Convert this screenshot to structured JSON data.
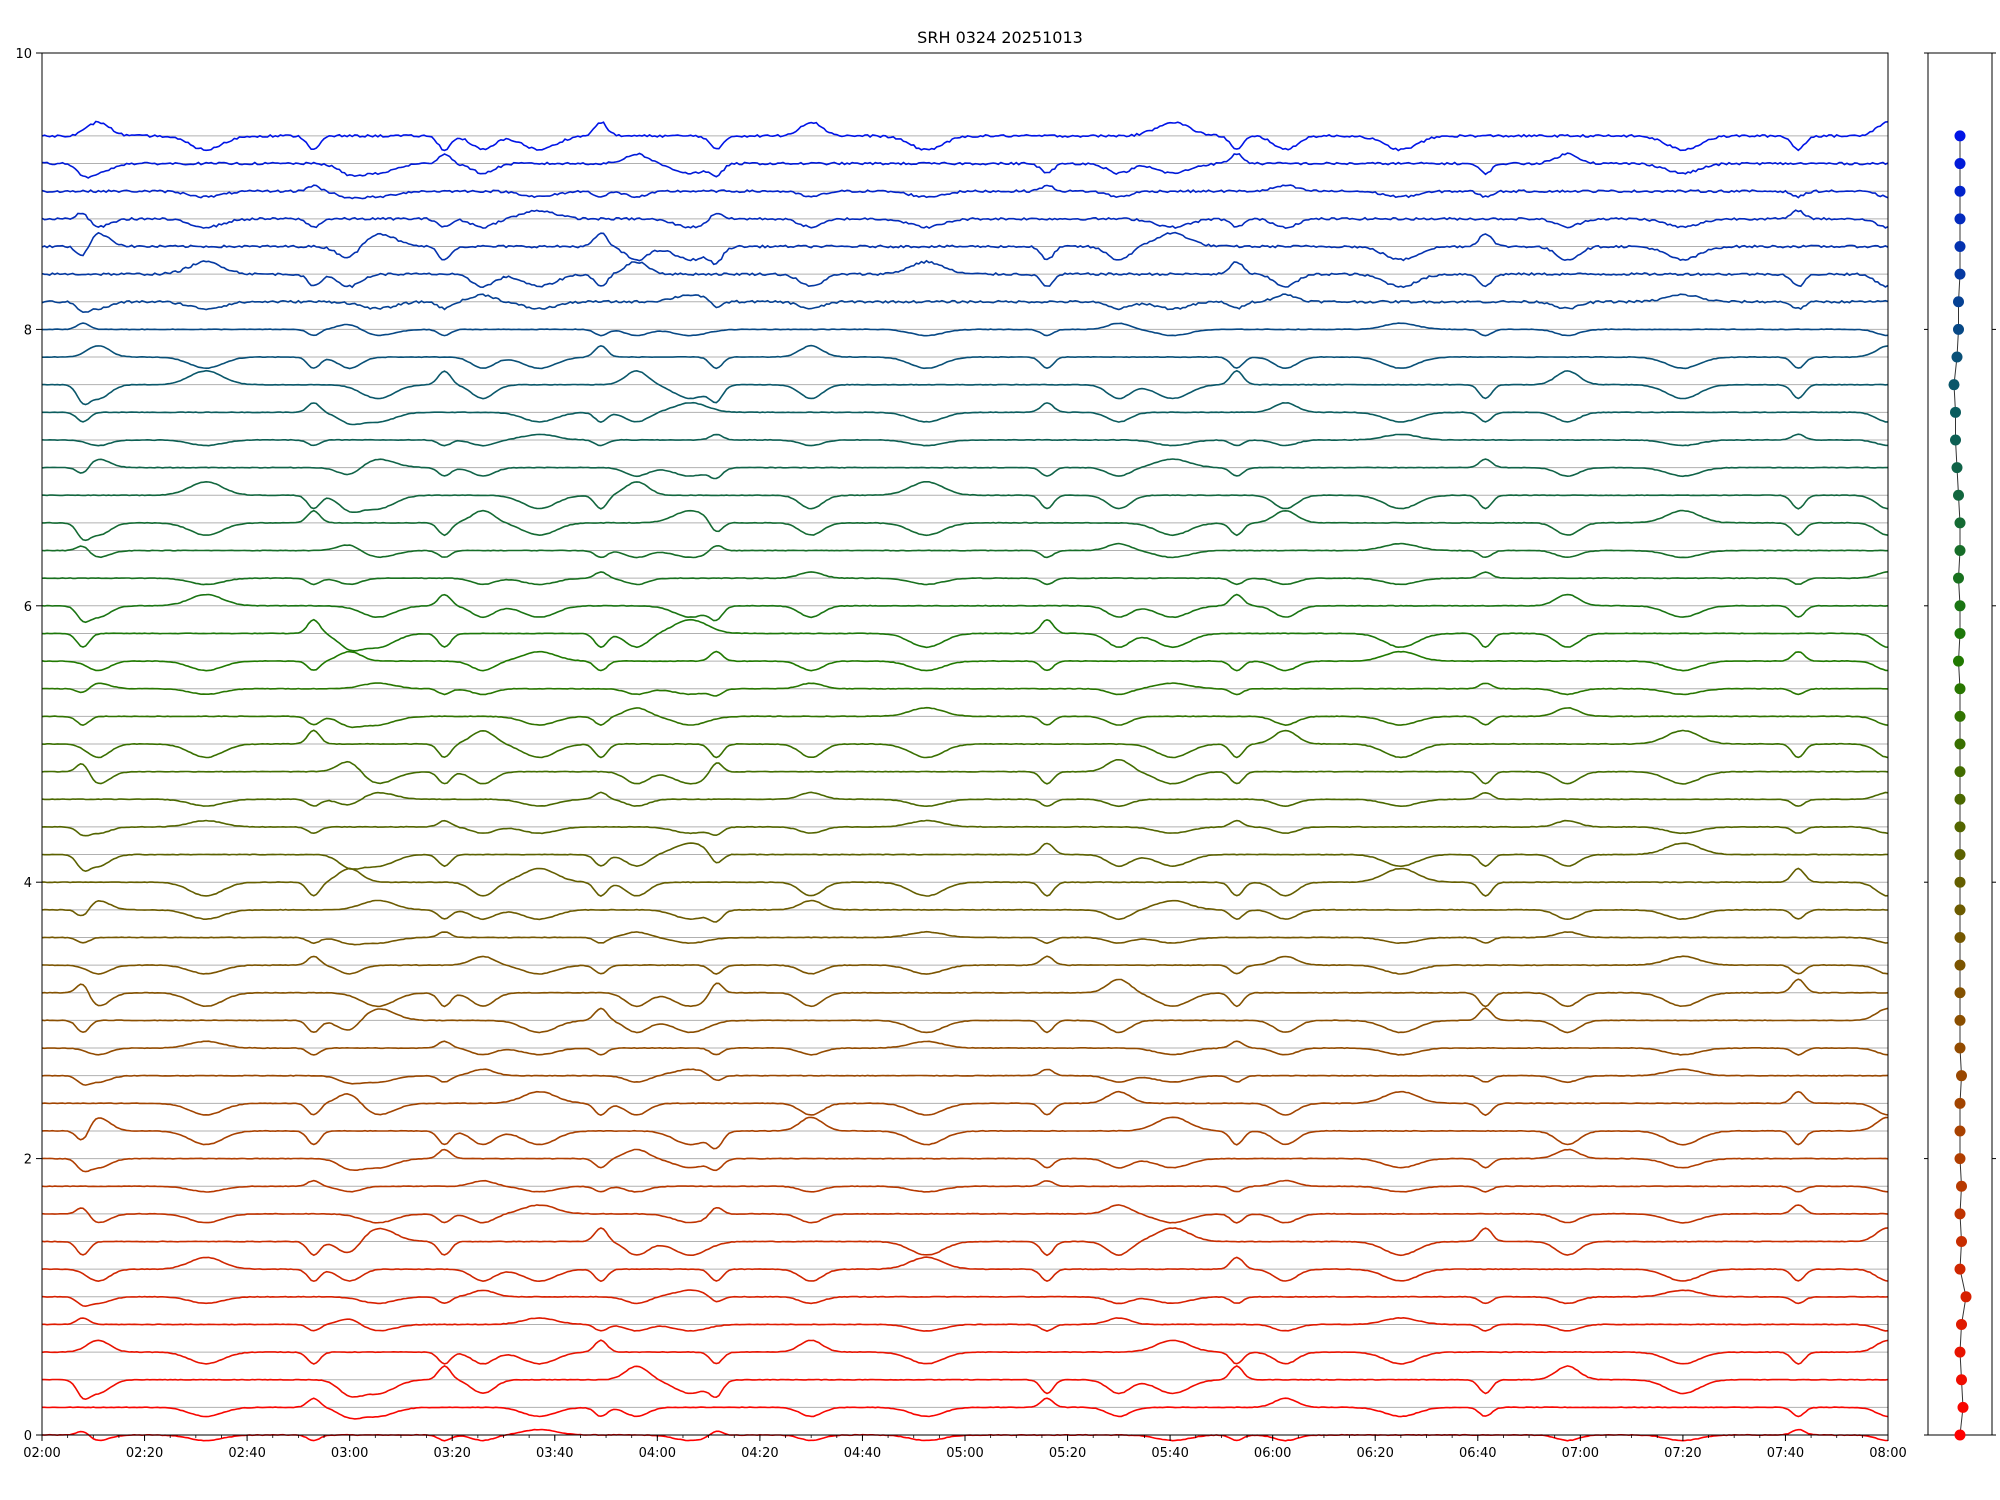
{
  "chart_data": {
    "type": "line",
    "title": "SRH 0324 20251013",
    "xlabel": "",
    "ylabel": "",
    "ylim": [
      0,
      10
    ],
    "xlim_minutes": [
      0,
      360
    ],
    "x_tick_labels": [
      "02:00",
      "02:20",
      "02:40",
      "03:00",
      "03:20",
      "03:40",
      "04:00",
      "04:20",
      "04:40",
      "05:00",
      "05:20",
      "05:40",
      "06:00",
      "06:20",
      "06:40",
      "07:00",
      "07:20",
      "07:40",
      "08:00"
    ],
    "y_ticks": [
      0,
      2,
      4,
      6,
      8,
      10
    ],
    "y_tick_labels": [
      "0",
      "2",
      "4",
      "6",
      "8",
      "10"
    ],
    "grid": "horizontal baseline per channel",
    "n_channels": 48,
    "baseline_spacing": 0.2,
    "color_gradient": [
      "#ff0000",
      "#b43c00",
      "#6e5a00",
      "#1e7a00",
      "#0a5a64",
      "#0014e6"
    ],
    "events_minutes": [
      16,
      22,
      64,
      106,
      120,
      131,
      157,
      172,
      194,
      218,
      232,
      253,
      263,
      300,
      345,
      392,
      420,
      441,
      466,
      485,
      530,
      563,
      595,
      640,
      685,
      720
    ],
    "side_panel": {
      "type": "scatter",
      "description_values": [
        0,
        0.02,
        0.01,
        0.0,
        0.01,
        0.04,
        0.0,
        0.01,
        0.0,
        0.01,
        0.0,
        0.0,
        0.0,
        0.01,
        0.0,
        0.0,
        0.0,
        0.0,
        0.0,
        0.0,
        0.0,
        0.0,
        0.0,
        0.0,
        0.0,
        0.0,
        0.0,
        0.0,
        -0.01,
        0.0,
        0.0,
        -0.01,
        0.0,
        0.0,
        -0.01,
        -0.02,
        -0.03,
        -0.03,
        -0.04,
        -0.02,
        -0.01,
        -0.01,
        0.0,
        0.0,
        0.0,
        0.0,
        0.0,
        0.0
      ]
    }
  }
}
